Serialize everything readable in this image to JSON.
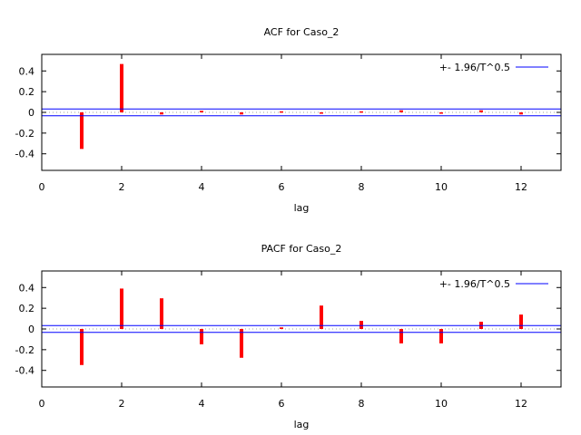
{
  "chart_data": [
    {
      "type": "bar",
      "title": "ACF for Caso_2",
      "xlabel": "lag",
      "ylabel": "",
      "xlim": [
        0,
        13
      ],
      "ylim": [
        -0.56,
        0.56
      ],
      "xticks": [
        0,
        2,
        4,
        6,
        8,
        10,
        12
      ],
      "yticks": [
        0.4,
        0.2,
        0,
        -0.2,
        -0.4
      ],
      "ytick_labels": [
        "0.4",
        "0.2",
        "0",
        "-0.2",
        "-0.4"
      ],
      "x": [
        1,
        2,
        3,
        4,
        5,
        6,
        7,
        8,
        9,
        10,
        11,
        12
      ],
      "values": [
        -0.353,
        0.467,
        -0.02,
        0.015,
        -0.02,
        0.01,
        0,
        0.01,
        0.02,
        -0.01,
        0.02,
        -0.02
      ],
      "band": [
        0.033,
        -0.033
      ],
      "legend": {
        "label": "+- 1.96/T^0.5",
        "placement": "top-right"
      },
      "bar_color": "#ff0000",
      "band_color": "#0000ff"
    },
    {
      "type": "bar",
      "title": "PACF for Caso_2",
      "xlabel": "lag",
      "ylabel": "",
      "xlim": [
        0,
        13
      ],
      "ylim": [
        -0.56,
        0.56
      ],
      "xticks": [
        0,
        2,
        4,
        6,
        8,
        10,
        12
      ],
      "yticks": [
        0.4,
        0.2,
        0,
        -0.2,
        -0.4
      ],
      "ytick_labels": [
        "0.4",
        "0.2",
        "0",
        "-0.2",
        "-0.4"
      ],
      "x": [
        1,
        2,
        3,
        4,
        5,
        6,
        7,
        8,
        9,
        10,
        11,
        12
      ],
      "values": [
        -0.348,
        0.39,
        0.296,
        -0.148,
        -0.278,
        0.015,
        0.226,
        0.078,
        -0.139,
        -0.139,
        0.07,
        0.139
      ],
      "band": [
        0.033,
        -0.033
      ],
      "legend": {
        "label": "+- 1.96/T^0.5",
        "placement": "top-right"
      },
      "bar_color": "#ff0000",
      "band_color": "#0000ff"
    }
  ]
}
